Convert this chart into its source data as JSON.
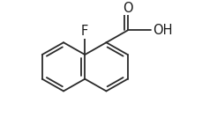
{
  "background_color": "#ffffff",
  "bond_color": "#2a2a2a",
  "text_color": "#1a1a1a",
  "figsize": [
    2.3,
    1.34
  ],
  "dpi": 100,
  "BL": 28,
  "lc": [
    72,
    75
  ],
  "F_label": "F",
  "O_label": "O",
  "OH_label": "OH",
  "label_fontsize": 10.5,
  "lw": 1.3
}
